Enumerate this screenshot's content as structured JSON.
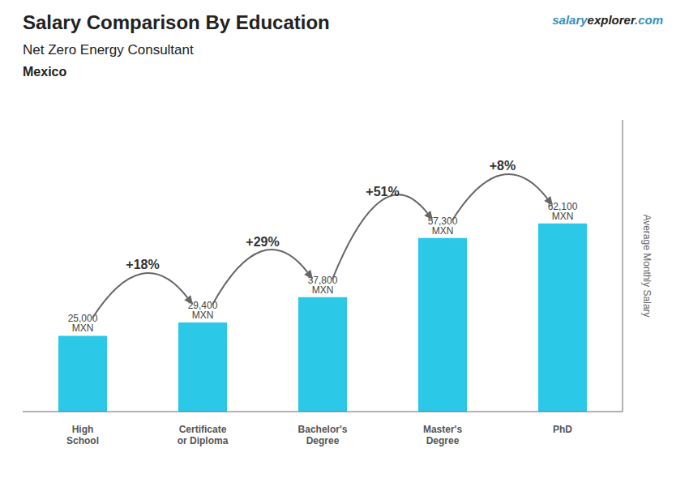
{
  "chart_data": {
    "type": "bar",
    "title": "Salary Comparison By Education",
    "subtitle": "Net Zero Energy Consultant",
    "annotations": {
      "country": "Mexico",
      "website": [
        "salary",
        "explorer",
        ".com"
      ],
      "changes": [
        "+18%",
        "+29%",
        "+51%",
        "+8%"
      ]
    },
    "ylabel": "Average Monthly Salary",
    "categories": [
      "High\nSchool",
      "Certificate\nor Diploma",
      "Bachelor's\nDegree",
      "Master's\nDegree",
      "PhD"
    ],
    "values": [
      25000,
      29400,
      37800,
      57300,
      62100
    ],
    "value_labels": [
      "25,000 MXN",
      "29,400 MXN",
      "37,800 MXN",
      "57,300 MXN",
      "62,100 MXN"
    ],
    "data_labels": true,
    "color": "#2bc8e8",
    "ylim": [
      0,
      96255
    ],
    "tick_labels": "x"
  }
}
